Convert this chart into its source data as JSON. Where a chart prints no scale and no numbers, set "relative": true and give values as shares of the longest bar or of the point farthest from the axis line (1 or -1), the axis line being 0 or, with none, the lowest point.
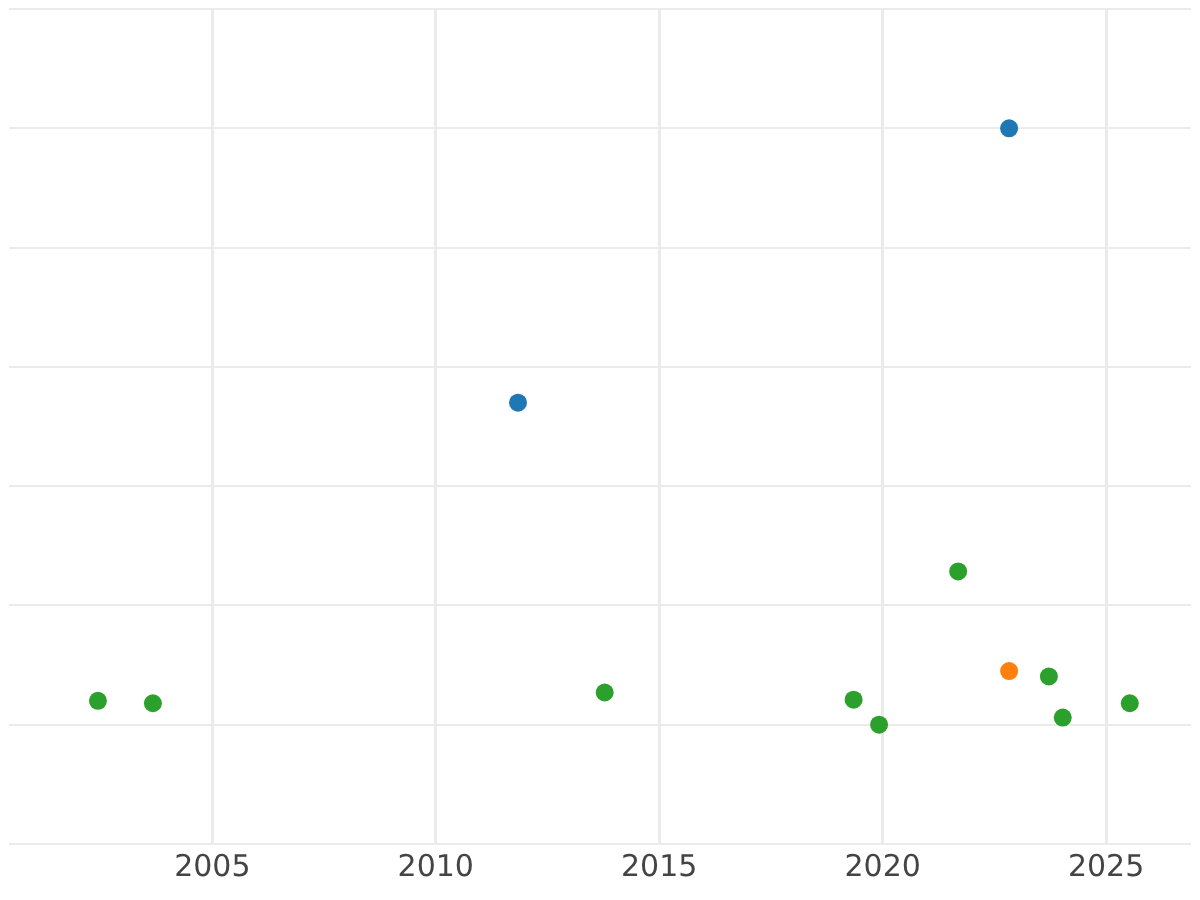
{
  "chart_data": {
    "type": "scatter",
    "relative": true,
    "grid": true,
    "legend": false,
    "marker": "circle",
    "xlim": [
      2000.45,
      2026.9
    ],
    "xticks": [
      2005,
      2010,
      2015,
      2020,
      2025
    ],
    "series": [
      {
        "color": "#1f77b4",
        "x": [
          2022.83,
          2011.84
        ],
        "values": [
          1.0,
          0.54
        ]
      },
      {
        "color": "#ff7f0e",
        "x": [
          2022.83
        ],
        "values": [
          0.09
        ]
      },
      {
        "color": "#2ca02c",
        "x": [
          2002.44,
          2003.67,
          2013.78,
          2019.35,
          2019.92,
          2021.69,
          2023.72,
          2024.03,
          2025.53
        ],
        "values": [
          0.04,
          0.036,
          0.054,
          0.042,
          0,
          0.257,
          0.081,
          0.012,
          0.036
        ]
      }
    ]
  }
}
